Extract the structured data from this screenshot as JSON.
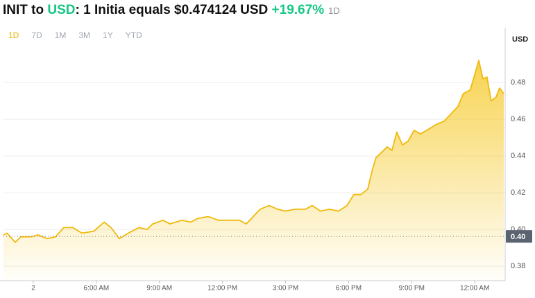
{
  "chart_data": {
    "type": "area",
    "title": {
      "base": "INIT",
      "connector": "to",
      "quote": "USD",
      "text": ": 1 Initia equals $0.474124 USD",
      "change": "+19.67%",
      "period": "1D"
    },
    "ranges": [
      "1D",
      "7D",
      "1M",
      "3M",
      "1Y",
      "YTD"
    ],
    "active_range": "1D",
    "y_axis_label": "USD",
    "color": "#f0b90b",
    "x": [
      -1.42,
      -1.25,
      -0.86,
      -0.59,
      -0.1,
      0.23,
      0.66,
      1.06,
      1.45,
      1.88,
      2.31,
      2.87,
      3.37,
      3.7,
      4.09,
      4.52,
      5.02,
      5.41,
      5.68,
      6.17,
      6.5,
      7.06,
      7.49,
      7.82,
      8.32,
      8.81,
      9.31,
      9.8,
      10.13,
      10.46,
      10.79,
      11.22,
      11.62,
      12.01,
      12.44,
      12.94,
      13.27,
      13.66,
      14.09,
      14.52,
      14.92,
      15.25,
      15.58,
      15.91,
      16.14,
      16.3,
      16.57,
      16.83,
      17.06,
      17.29,
      17.56,
      17.82,
      18.12,
      18.42,
      18.71,
      19.14,
      19.54,
      19.87,
      20.2,
      20.46,
      20.79,
      21.19,
      21.39,
      21.58,
      21.78,
      22.01,
      22.18,
      22.38
    ],
    "values": [
      0.397,
      0.398,
      0.393,
      0.396,
      0.396,
      0.397,
      0.395,
      0.396,
      0.401,
      0.401,
      0.398,
      0.399,
      0.404,
      0.401,
      0.395,
      0.398,
      0.401,
      0.4,
      0.403,
      0.405,
      0.403,
      0.405,
      0.404,
      0.406,
      0.407,
      0.405,
      0.405,
      0.405,
      0.403,
      0.407,
      0.411,
      0.413,
      0.411,
      0.41,
      0.411,
      0.411,
      0.413,
      0.41,
      0.411,
      0.41,
      0.413,
      0.419,
      0.419,
      0.422,
      0.433,
      0.439,
      0.442,
      0.445,
      0.443,
      0.453,
      0.446,
      0.448,
      0.454,
      0.452,
      0.454,
      0.457,
      0.459,
      0.463,
      0.467,
      0.474,
      0.476,
      0.492,
      0.482,
      0.483,
      0.47,
      0.472,
      0.477,
      0.474
    ],
    "xlim": [
      -1.42,
      22.38
    ],
    "xticks": [
      {
        "value": 0,
        "label": "2"
      },
      {
        "value": 3,
        "label": "6:00 AM"
      },
      {
        "value": 6,
        "label": "9:00 AM"
      },
      {
        "value": 9,
        "label": "12:00 PM"
      },
      {
        "value": 12,
        "label": "3:00 PM"
      },
      {
        "value": 15,
        "label": "6:00 PM"
      },
      {
        "value": 18,
        "label": "9:00 PM"
      },
      {
        "value": 21,
        "label": "12:00 AM"
      }
    ],
    "ylim": [
      0.3721,
      0.5042
    ],
    "yticks": [
      0.38,
      {
        "value": 0.4,
        "label": "0.40"
      },
      0.42,
      0.44,
      0.46,
      0.48
    ],
    "reference_line": {
      "value": 0.3962,
      "label": "0.40"
    },
    "grid": true
  }
}
